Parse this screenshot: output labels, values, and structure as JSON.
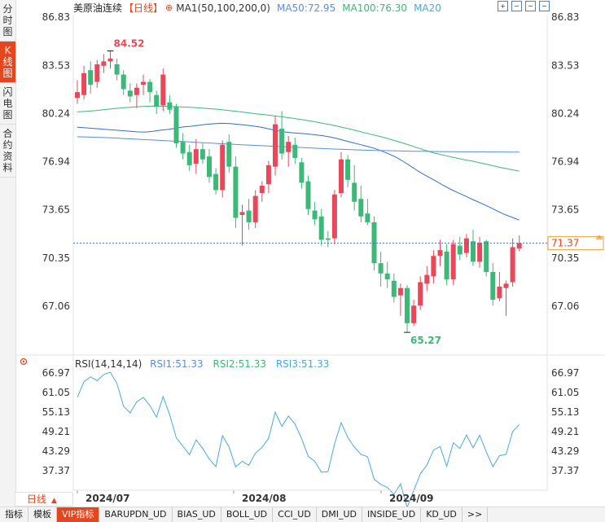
{
  "sidebar": {
    "tabs": [
      {
        "label": "分时图"
      },
      {
        "label": "K线图",
        "active": true
      },
      {
        "label": "闪电图"
      },
      {
        "label": "合约资料"
      }
    ]
  },
  "header": {
    "title": "美原油连续",
    "period": "【日线】",
    "ma1": "MA1(50,100,200,0)",
    "ma50": "MA50:72.95",
    "ma100": "MA100:76.30",
    "ma20": "MA20"
  },
  "price_axis": {
    "left_labels": [
      "86.83",
      "83.53",
      "80.24",
      "76.94",
      "73.65",
      "70.35",
      "67.06"
    ],
    "right_labels": [
      "86.83",
      "83.53",
      "80.24",
      "76.94",
      "73.65",
      "70.35",
      "67.06"
    ],
    "current_price": "71.37",
    "high_label": "84.52",
    "low_label": "65.27"
  },
  "rsi": {
    "name": "RSI(14,14,14)",
    "rsi1": "RSI1:51.33",
    "rsi2": "RSI2:51.33",
    "rsi3": "RSI3:51.33",
    "left_labels": [
      "66.97",
      "61.05",
      "55.13",
      "49.21",
      "43.29",
      "37.37"
    ],
    "right_labels": [
      "66.97",
      "61.05",
      "55.13",
      "49.21",
      "43.29",
      "37.37"
    ]
  },
  "x_axis": {
    "labels": [
      "2024/07",
      "2024/08",
      "2024/09"
    ]
  },
  "period_select": {
    "label": "日线",
    "arrow": "▲"
  },
  "bottom_tabs": [
    "指标",
    "模板",
    "VIP指标",
    "BARUPDN_UD",
    "BIAS_UD",
    "BOLL_UD",
    "CCI_UD",
    "DMI_UD",
    "INSIDE_UD",
    "KD_UD",
    ">>"
  ],
  "colors": {
    "up": "#e8485a",
    "down": "#3cb878",
    "accent": "#e6461e",
    "ma50": "#5b8fd6",
    "ma100": "#3cb878"
  },
  "chart_data": {
    "type": "candlestick",
    "ylim": [
      65.0,
      87.5
    ],
    "candles": [
      {
        "o": 81.3,
        "h": 82.5,
        "l": 80.9,
        "c": 81.7
      },
      {
        "o": 81.5,
        "h": 83.5,
        "l": 81.2,
        "c": 83.0
      },
      {
        "o": 83.2,
        "h": 83.8,
        "l": 81.6,
        "c": 82.2
      },
      {
        "o": 82.4,
        "h": 83.9,
        "l": 82.0,
        "c": 83.6
      },
      {
        "o": 83.5,
        "h": 84.3,
        "l": 83.0,
        "c": 83.8
      },
      {
        "o": 83.8,
        "h": 84.52,
        "l": 83.3,
        "c": 84.0
      },
      {
        "o": 83.6,
        "h": 84.0,
        "l": 82.5,
        "c": 82.9
      },
      {
        "o": 82.9,
        "h": 83.2,
        "l": 81.5,
        "c": 81.9
      },
      {
        "o": 81.8,
        "h": 82.3,
        "l": 81.0,
        "c": 81.4
      },
      {
        "o": 81.5,
        "h": 82.3,
        "l": 80.6,
        "c": 82.0
      },
      {
        "o": 82.2,
        "h": 82.9,
        "l": 81.5,
        "c": 82.4
      },
      {
        "o": 82.4,
        "h": 82.6,
        "l": 81.0,
        "c": 81.7
      },
      {
        "o": 81.5,
        "h": 81.8,
        "l": 80.2,
        "c": 80.7
      },
      {
        "o": 80.8,
        "h": 83.3,
        "l": 80.4,
        "c": 82.9
      },
      {
        "o": 81.0,
        "h": 81.5,
        "l": 80.2,
        "c": 80.5
      },
      {
        "o": 80.7,
        "h": 80.9,
        "l": 77.9,
        "c": 78.2
      },
      {
        "o": 78.3,
        "h": 78.9,
        "l": 77.1,
        "c": 77.5
      },
      {
        "o": 77.6,
        "h": 78.1,
        "l": 76.3,
        "c": 76.7
      },
      {
        "o": 76.8,
        "h": 78.5,
        "l": 76.1,
        "c": 77.8
      },
      {
        "o": 77.8,
        "h": 78.2,
        "l": 76.8,
        "c": 77.1
      },
      {
        "o": 77.3,
        "h": 77.8,
        "l": 75.5,
        "c": 75.9
      },
      {
        "o": 76.1,
        "h": 76.5,
        "l": 74.7,
        "c": 75.0
      },
      {
        "o": 75.0,
        "h": 78.4,
        "l": 74.5,
        "c": 78.1
      },
      {
        "o": 78.3,
        "h": 78.8,
        "l": 76.2,
        "c": 76.6
      },
      {
        "o": 76.6,
        "h": 77.3,
        "l": 72.4,
        "c": 73.1
      },
      {
        "o": 73.3,
        "h": 74.0,
        "l": 71.2,
        "c": 73.5
      },
      {
        "o": 73.6,
        "h": 74.4,
        "l": 72.3,
        "c": 72.8
      },
      {
        "o": 72.8,
        "h": 75.0,
        "l": 72.4,
        "c": 74.6
      },
      {
        "o": 74.8,
        "h": 75.6,
        "l": 74.2,
        "c": 75.3
      },
      {
        "o": 75.4,
        "h": 77.0,
        "l": 74.8,
        "c": 76.7
      },
      {
        "o": 76.6,
        "h": 80.1,
        "l": 76.0,
        "c": 79.5
      },
      {
        "o": 79.2,
        "h": 80.4,
        "l": 77.1,
        "c": 77.5
      },
      {
        "o": 77.6,
        "h": 78.7,
        "l": 76.6,
        "c": 78.3
      },
      {
        "o": 78.1,
        "h": 78.6,
        "l": 76.8,
        "c": 77.2
      },
      {
        "o": 76.9,
        "h": 77.2,
        "l": 75.1,
        "c": 75.5
      },
      {
        "o": 75.6,
        "h": 76.0,
        "l": 73.3,
        "c": 73.7
      },
      {
        "o": 73.6,
        "h": 74.2,
        "l": 72.6,
        "c": 73.0
      },
      {
        "o": 73.2,
        "h": 73.7,
        "l": 71.2,
        "c": 71.6
      },
      {
        "o": 71.7,
        "h": 72.2,
        "l": 71.1,
        "c": 71.6
      },
      {
        "o": 71.7,
        "h": 75.0,
        "l": 71.3,
        "c": 74.7
      },
      {
        "o": 74.8,
        "h": 77.6,
        "l": 74.5,
        "c": 77.1
      },
      {
        "o": 77.1,
        "h": 77.4,
        "l": 75.2,
        "c": 75.7
      },
      {
        "o": 75.5,
        "h": 76.7,
        "l": 73.6,
        "c": 74.2
      },
      {
        "o": 74.4,
        "h": 75.3,
        "l": 72.8,
        "c": 73.2
      },
      {
        "o": 73.4,
        "h": 74.4,
        "l": 72.6,
        "c": 72.8
      },
      {
        "o": 72.8,
        "h": 73.2,
        "l": 69.5,
        "c": 70.0
      },
      {
        "o": 70.0,
        "h": 70.8,
        "l": 68.4,
        "c": 69.3
      },
      {
        "o": 69.3,
        "h": 70.1,
        "l": 68.3,
        "c": 68.9
      },
      {
        "o": 68.8,
        "h": 69.3,
        "l": 67.3,
        "c": 67.7
      },
      {
        "o": 67.8,
        "h": 68.6,
        "l": 66.4,
        "c": 68.3
      },
      {
        "o": 68.3,
        "h": 68.5,
        "l": 65.27,
        "c": 65.9
      },
      {
        "o": 65.9,
        "h": 67.5,
        "l": 65.7,
        "c": 67.1
      },
      {
        "o": 67.1,
        "h": 69.1,
        "l": 66.8,
        "c": 68.7
      },
      {
        "o": 68.6,
        "h": 69.8,
        "l": 68.1,
        "c": 69.2
      },
      {
        "o": 69.1,
        "h": 70.9,
        "l": 68.6,
        "c": 70.5
      },
      {
        "o": 70.5,
        "h": 71.6,
        "l": 69.8,
        "c": 70.9
      },
      {
        "o": 70.8,
        "h": 71.3,
        "l": 68.5,
        "c": 68.9
      },
      {
        "o": 68.9,
        "h": 71.6,
        "l": 68.5,
        "c": 71.3
      },
      {
        "o": 71.2,
        "h": 71.8,
        "l": 70.2,
        "c": 70.6
      },
      {
        "o": 70.7,
        "h": 72.0,
        "l": 70.4,
        "c": 71.7
      },
      {
        "o": 71.5,
        "h": 72.3,
        "l": 69.8,
        "c": 70.1
      },
      {
        "o": 70.1,
        "h": 71.8,
        "l": 69.7,
        "c": 71.4
      },
      {
        "o": 71.5,
        "h": 71.6,
        "l": 69.1,
        "c": 69.4
      },
      {
        "o": 69.4,
        "h": 70.0,
        "l": 67.1,
        "c": 67.5
      },
      {
        "o": 67.6,
        "h": 69.4,
        "l": 67.4,
        "c": 68.4
      },
      {
        "o": 68.3,
        "h": 68.8,
        "l": 66.4,
        "c": 68.6
      },
      {
        "o": 68.7,
        "h": 71.7,
        "l": 68.4,
        "c": 71.1
      },
      {
        "o": 71.0,
        "h": 71.9,
        "l": 70.8,
        "c": 71.37
      }
    ],
    "ma_series": [
      {
        "name": "MA50",
        "values": [
          79.3,
          79.26,
          79.22,
          79.18,
          79.14,
          79.1,
          79.06,
          79.02,
          78.98,
          78.97,
          79.03,
          79.1,
          79.15,
          79.25,
          79.33,
          79.37,
          79.44,
          79.5,
          79.54,
          79.57,
          79.55,
          79.5,
          79.45,
          79.39,
          79.31,
          79.2,
          79.09,
          78.99,
          78.93,
          78.89,
          78.85,
          78.79,
          78.73,
          78.65,
          78.54,
          78.4,
          78.26,
          78.13,
          78.0,
          77.85,
          77.66,
          77.45,
          77.2,
          76.89,
          76.55,
          76.21,
          75.92,
          75.63,
          75.33,
          75.05,
          74.81,
          74.57,
          74.33,
          74.1,
          73.86,
          73.6,
          73.35,
          73.15,
          72.95
        ]
      },
      {
        "name": "MA100",
        "values": [
          80.35,
          80.39,
          80.44,
          80.51,
          80.58,
          80.63,
          80.68,
          80.72,
          80.75,
          80.74,
          80.72,
          80.69,
          80.66,
          80.62,
          80.57,
          80.52,
          80.45,
          80.38,
          80.3,
          80.22,
          80.15,
          80.07,
          79.99,
          79.9,
          79.81,
          79.7,
          79.58,
          79.46,
          79.32,
          79.17,
          79.01,
          78.85,
          78.7,
          78.53,
          78.34,
          78.14,
          77.93,
          77.72,
          77.53,
          77.38,
          77.24,
          77.1,
          76.98,
          76.84,
          76.7,
          76.55,
          76.42,
          76.3
        ]
      },
      {
        "name": "MA200",
        "values": [
          78.65,
          78.63,
          78.61,
          78.59,
          78.56,
          78.52,
          78.49,
          78.45,
          78.42,
          78.39,
          78.35,
          78.32,
          78.28,
          78.24,
          78.21,
          78.17,
          78.14,
          78.1,
          78.07,
          78.04,
          78.01,
          77.98,
          77.95,
          77.92,
          77.89,
          77.86,
          77.83,
          77.8,
          77.78,
          77.75,
          77.73,
          77.71,
          77.7,
          77.69,
          77.67,
          77.66,
          77.65,
          77.64,
          77.63,
          77.63,
          77.62,
          77.62,
          77.62,
          77.61,
          77.61,
          77.6,
          77.6
        ]
      }
    ],
    "rsi_series": [
      59.6,
      64.3,
      65.8,
      64.6,
      66.5,
      67.2,
      63.8,
      56.9,
      54.9,
      58.2,
      59.6,
      57.1,
      53.6,
      59.8,
      54.3,
      47.3,
      44.8,
      42.2,
      46.7,
      44.1,
      40.9,
      38.6,
      48.0,
      44.6,
      38.5,
      40.2,
      39.0,
      42.7,
      44.4,
      47.2,
      55.1,
      50.8,
      53.9,
      51.5,
      47.1,
      41.7,
      40.2,
      36.9,
      37.1,
      45.5,
      51.9,
      47.4,
      44.5,
      42.3,
      41.6,
      34.8,
      33.2,
      32.3,
      30.2,
      33.4,
      26.3,
      31.3,
      36.4,
      39.1,
      43.6,
      44.7,
      38.7,
      45.8,
      44.1,
      48.2,
      44.3,
      48.1,
      43.1,
      38.6,
      41.9,
      42.3,
      49.2,
      51.33
    ],
    "ma_start_index": {
      "MA50": 0,
      "MA100": 0,
      "MA200": 0
    }
  }
}
